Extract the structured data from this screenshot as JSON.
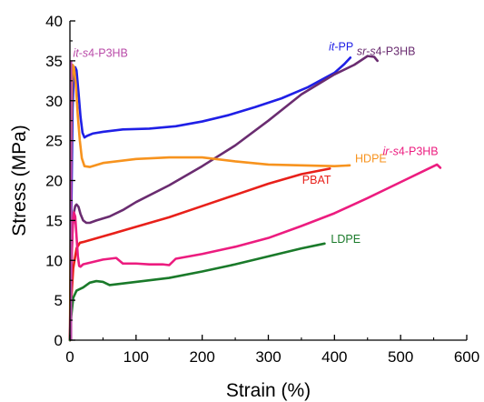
{
  "chart_data": {
    "type": "line",
    "xlabel": "Strain (%)",
    "ylabel": "Stress (MPa)",
    "xlim": [
      0,
      600
    ],
    "ylim": [
      0,
      40
    ],
    "xticks": [
      "0",
      "100",
      "200",
      "300",
      "400",
      "500",
      "600"
    ],
    "yticks": [
      "0",
      "5",
      "10",
      "15",
      "20",
      "25",
      "30",
      "35",
      "40"
    ],
    "grid": false,
    "series": [
      {
        "name": "it-PP",
        "name_parts": [
          {
            "t": "it",
            "i": true
          },
          {
            "t": "-PP",
            "i": false
          }
        ],
        "color": "#1f1fe6",
        "label_at": [
          410,
          36.3
        ],
        "points": [
          [
            0,
            0
          ],
          [
            2,
            15
          ],
          [
            4,
            29
          ],
          [
            6,
            33.5
          ],
          [
            8,
            34.2
          ],
          [
            10,
            33.8
          ],
          [
            13,
            31
          ],
          [
            16,
            28
          ],
          [
            19,
            26
          ],
          [
            22,
            25.4
          ],
          [
            26,
            25.6
          ],
          [
            35,
            25.9
          ],
          [
            50,
            26.1
          ],
          [
            80,
            26.4
          ],
          [
            120,
            26.5
          ],
          [
            160,
            26.8
          ],
          [
            200,
            27.4
          ],
          [
            240,
            28.2
          ],
          [
            280,
            29.2
          ],
          [
            320,
            30.3
          ],
          [
            360,
            31.7
          ],
          [
            400,
            33.5
          ],
          [
            415,
            34.6
          ],
          [
            424,
            35.4
          ]
        ]
      },
      {
        "name": "sr-s4-P3HB",
        "name_parts": [
          {
            "t": "sr",
            "i": true
          },
          {
            "t": "-",
            "i": false
          },
          {
            "t": "s",
            "i": true
          },
          {
            "t": "4-P3HB",
            "i": false
          }
        ],
        "color": "#6a2c70",
        "label_at": [
          478,
          35.7
        ],
        "points": [
          [
            0,
            0
          ],
          [
            2,
            9
          ],
          [
            4,
            14
          ],
          [
            6,
            16
          ],
          [
            8,
            16.8
          ],
          [
            10,
            17
          ],
          [
            13,
            16.7
          ],
          [
            16,
            15.8
          ],
          [
            20,
            15
          ],
          [
            25,
            14.7
          ],
          [
            30,
            14.7
          ],
          [
            40,
            15
          ],
          [
            60,
            15.5
          ],
          [
            80,
            16.3
          ],
          [
            100,
            17.3
          ],
          [
            150,
            19.4
          ],
          [
            200,
            21.8
          ],
          [
            250,
            24.4
          ],
          [
            300,
            27.5
          ],
          [
            350,
            30.8
          ],
          [
            400,
            33.3
          ],
          [
            430,
            34.5
          ],
          [
            450,
            35.6
          ],
          [
            460,
            35.5
          ],
          [
            465,
            35
          ]
        ]
      },
      {
        "name": "HDPE",
        "name_parts": [
          {
            "t": "HDPE",
            "i": false
          }
        ],
        "color": "#f7931e",
        "label_at": [
          455,
          22.3
        ],
        "points": [
          [
            0,
            0
          ],
          [
            1,
            12
          ],
          [
            2,
            24
          ],
          [
            3,
            32
          ],
          [
            4,
            34.5
          ],
          [
            6,
            34.2
          ],
          [
            9,
            32
          ],
          [
            12,
            28
          ],
          [
            15,
            25
          ],
          [
            18,
            22.8
          ],
          [
            22,
            21.8
          ],
          [
            30,
            21.7
          ],
          [
            50,
            22.2
          ],
          [
            100,
            22.7
          ],
          [
            150,
            22.9
          ],
          [
            200,
            22.9
          ],
          [
            250,
            22.4
          ],
          [
            300,
            22
          ],
          [
            350,
            21.9
          ],
          [
            400,
            21.8
          ],
          [
            423,
            21.9
          ]
        ]
      },
      {
        "name": "PBAT",
        "name_parts": [
          {
            "t": "PBAT",
            "i": false
          }
        ],
        "color": "#e8201a",
        "label_at": [
          373,
          19.6
        ],
        "points": [
          [
            0,
            0
          ],
          [
            2,
            5
          ],
          [
            5,
            9
          ],
          [
            10,
            11.5
          ],
          [
            15,
            12.2
          ],
          [
            20,
            12.3
          ],
          [
            50,
            13
          ],
          [
            100,
            14.2
          ],
          [
            150,
            15.4
          ],
          [
            200,
            16.8
          ],
          [
            250,
            18.2
          ],
          [
            300,
            19.6
          ],
          [
            350,
            20.8
          ],
          [
            393,
            21.5
          ]
        ]
      },
      {
        "name": "ir-s4-P3HB",
        "name_parts": [
          {
            "t": "ir",
            "i": true
          },
          {
            "t": "-",
            "i": false
          },
          {
            "t": "s",
            "i": true
          },
          {
            "t": "4-P3HB",
            "i": false
          }
        ],
        "color": "#ec1c7f",
        "label_at": [
          515,
          23.2
        ],
        "points": [
          [
            0,
            0
          ],
          [
            2,
            8
          ],
          [
            4,
            14
          ],
          [
            6,
            16
          ],
          [
            8,
            15.5
          ],
          [
            10,
            13
          ],
          [
            12,
            10.5
          ],
          [
            14,
            9.3
          ],
          [
            16,
            9.2
          ],
          [
            20,
            9.5
          ],
          [
            30,
            9.7
          ],
          [
            50,
            10.1
          ],
          [
            70,
            10.3
          ],
          [
            80,
            9.6
          ],
          [
            100,
            9.6
          ],
          [
            120,
            9.5
          ],
          [
            140,
            9.5
          ],
          [
            150,
            9.4
          ],
          [
            160,
            10.2
          ],
          [
            200,
            10.8
          ],
          [
            250,
            11.7
          ],
          [
            300,
            12.8
          ],
          [
            350,
            14.3
          ],
          [
            400,
            15.9
          ],
          [
            450,
            17.8
          ],
          [
            500,
            19.8
          ],
          [
            540,
            21.4
          ],
          [
            555,
            22
          ],
          [
            560,
            21.6
          ]
        ]
      },
      {
        "name": "LDPE",
        "name_parts": [
          {
            "t": "LDPE",
            "i": false
          }
        ],
        "color": "#1a7a2a",
        "label_at": [
          417,
          12.2
        ],
        "points": [
          [
            0,
            0
          ],
          [
            2,
            3
          ],
          [
            5,
            5.3
          ],
          [
            10,
            6.2
          ],
          [
            20,
            6.6
          ],
          [
            30,
            7.2
          ],
          [
            40,
            7.4
          ],
          [
            50,
            7.3
          ],
          [
            60,
            6.9
          ],
          [
            70,
            7
          ],
          [
            100,
            7.3
          ],
          [
            150,
            7.8
          ],
          [
            200,
            8.6
          ],
          [
            250,
            9.5
          ],
          [
            300,
            10.5
          ],
          [
            350,
            11.5
          ],
          [
            385,
            12.1
          ]
        ]
      }
    ],
    "markers": [
      {
        "label": "it-s4-P3HB",
        "name_parts": [
          {
            "t": "it",
            "i": true
          },
          {
            "t": "-",
            "i": false
          },
          {
            "t": "s",
            "i": true
          },
          {
            "t": "4-P3HB",
            "i": false
          }
        ],
        "color": "#b94aa8",
        "label_at": [
          2,
          35.5
        ],
        "x": 2,
        "y_from": 0,
        "y_to": 35
      }
    ]
  }
}
